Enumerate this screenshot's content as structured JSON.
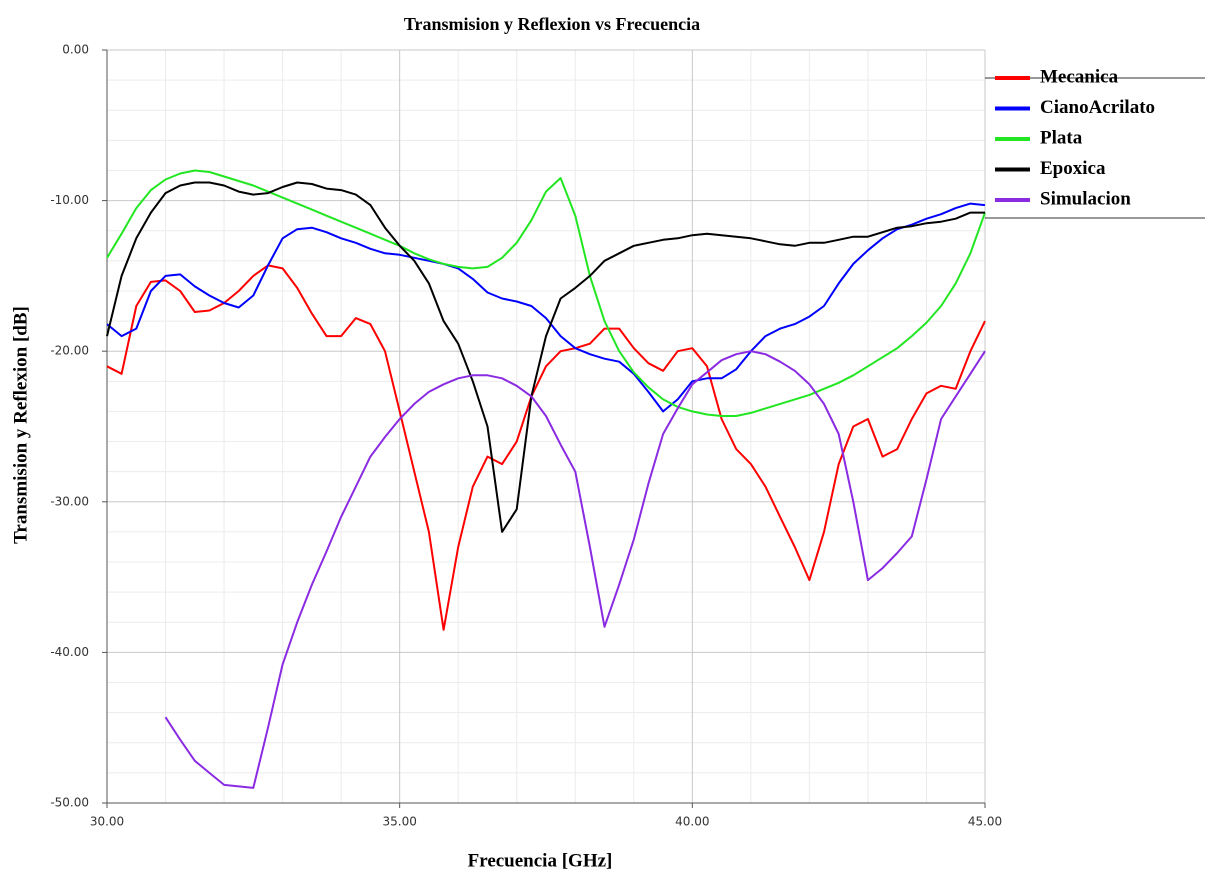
{
  "chart_data": {
    "type": "line",
    "title": "Transmision y Reflexion vs Frecuencia",
    "x_label": "Frecuencia [GHz]",
    "y_label": "Transmision y Reflexion [dB]",
    "xlim": [
      30,
      45
    ],
    "ylim": [
      -50,
      0
    ],
    "xticks": [
      {
        "value": 30,
        "label": "30.00"
      },
      {
        "value": 35,
        "label": "35.00"
      },
      {
        "value": 40,
        "label": "40.00"
      },
      {
        "value": 45,
        "label": "45.00"
      }
    ],
    "yticks": [
      {
        "value": 0,
        "label": "0.00"
      },
      {
        "value": -10,
        "label": "-10.00"
      },
      {
        "value": -20,
        "label": "-20.00"
      },
      {
        "value": -30,
        "label": "-30.00"
      },
      {
        "value": -40,
        "label": "-40.00"
      },
      {
        "value": -50,
        "label": "-50.00"
      }
    ],
    "xminorticks": [
      31,
      32,
      33,
      34,
      36,
      37,
      38,
      39,
      41,
      42,
      43,
      44
    ],
    "yminorticks": [
      -2,
      -4,
      -6,
      -8,
      -12,
      -14,
      -16,
      -18,
      -22,
      -24,
      -26,
      -28,
      -32,
      -34,
      -36,
      -38,
      -42,
      -44,
      -46,
      -48
    ],
    "grid": true,
    "legend": "right",
    "x": [
      30,
      30.25,
      30.5,
      30.75,
      31,
      31.25,
      31.5,
      31.75,
      32,
      32.25,
      32.5,
      32.75,
      33,
      33.25,
      33.5,
      33.75,
      34,
      34.25,
      34.5,
      34.75,
      35,
      35.25,
      35.5,
      35.75,
      36,
      36.25,
      36.5,
      36.75,
      37,
      37.25,
      37.5,
      37.75,
      38,
      38.25,
      38.5,
      38.75,
      39,
      39.25,
      39.5,
      39.75,
      40,
      40.25,
      40.5,
      40.75,
      41,
      41.25,
      41.5,
      41.75,
      42,
      42.25,
      42.5,
      42.75,
      43,
      43.25,
      43.5,
      43.75,
      44,
      44.25,
      44.5,
      44.75,
      45
    ],
    "series": [
      {
        "name": "Mecanica",
        "color": "#ff0000",
        "values": [
          -21,
          -21.5,
          -17,
          -15.4,
          -15.3,
          -16,
          -17.4,
          -17.3,
          -16.8,
          -16,
          -15,
          -14.3,
          -14.5,
          -15.8,
          -17.5,
          -19,
          -19,
          -17.8,
          -18.2,
          -20,
          -24,
          -28,
          -32,
          -38.5,
          -33,
          -29,
          -27,
          -27.5,
          -26,
          -23,
          -21,
          -20,
          -19.8,
          -19.5,
          -18.5,
          -18.5,
          -19.8,
          -20.8,
          -21.3,
          -20,
          -19.8,
          -21,
          -24.5,
          -26.5,
          -27.5,
          -29,
          -31,
          -33,
          -35.2,
          -32,
          -27.5,
          -25,
          -24.5,
          -27,
          -26.5,
          -24.5,
          -22.8,
          -22.3,
          -22.5,
          -20,
          -18
        ]
      },
      {
        "name": "CianoAcrilato",
        "color": "#0000ff",
        "values": [
          -18.2,
          -19,
          -18.5,
          -16,
          -15,
          -14.9,
          -15.7,
          -16.3,
          -16.8,
          -17.1,
          -16.3,
          -14.3,
          -12.5,
          -11.9,
          -11.8,
          -12.1,
          -12.5,
          -12.8,
          -13.2,
          -13.5,
          -13.6,
          -13.8,
          -14,
          -14.2,
          -14.5,
          -15.2,
          -16.1,
          -16.5,
          -16.7,
          -17,
          -17.8,
          -19,
          -19.8,
          -20.2,
          -20.5,
          -20.7,
          -21.5,
          -22.7,
          -24,
          -23.2,
          -22,
          -21.8,
          -21.8,
          -21.2,
          -20,
          -19,
          -18.5,
          -18.2,
          -17.7,
          -17,
          -15.5,
          -14.2,
          -13.3,
          -12.5,
          -11.9,
          -11.6,
          -11.2,
          -10.9,
          -10.5,
          -10.2,
          -10.3
        ]
      },
      {
        "name": "Plata",
        "color": "#22e622",
        "values": [
          -13.8,
          -12.2,
          -10.5,
          -9.3,
          -8.6,
          -8.2,
          -8,
          -8.1,
          -8.4,
          -8.7,
          -9,
          -9.4,
          -9.8,
          -10.2,
          -10.6,
          -11,
          -11.4,
          -11.8,
          -12.2,
          -12.6,
          -13,
          -13.5,
          -13.9,
          -14.2,
          -14.4,
          -14.5,
          -14.4,
          -13.8,
          -12.8,
          -11.3,
          -9.4,
          -8.5,
          -11,
          -15,
          -18,
          -20,
          -21.4,
          -22.4,
          -23.2,
          -23.7,
          -24,
          -24.2,
          -24.3,
          -24.3,
          -24.1,
          -23.8,
          -23.5,
          -23.2,
          -22.9,
          -22.5,
          -22.1,
          -21.6,
          -21,
          -20.4,
          -19.8,
          -19,
          -18.1,
          -17,
          -15.5,
          -13.5,
          -10.8
        ]
      },
      {
        "name": "Epoxica",
        "color": "#000000",
        "values": [
          -19,
          -15,
          -12.5,
          -10.8,
          -9.5,
          -9,
          -8.8,
          -8.8,
          -9,
          -9.4,
          -9.6,
          -9.5,
          -9.1,
          -8.8,
          -8.9,
          -9.2,
          -9.3,
          -9.6,
          -10.3,
          -11.8,
          -13,
          -14,
          -15.5,
          -18,
          -19.5,
          -22,
          -25,
          -32,
          -30.5,
          -23,
          -19,
          -16.5,
          -15.8,
          -15,
          -14,
          -13.5,
          -13,
          -12.8,
          -12.6,
          -12.5,
          -12.3,
          -12.2,
          -12.3,
          -12.4,
          -12.5,
          -12.7,
          -12.9,
          -13,
          -12.8,
          -12.8,
          -12.6,
          -12.4,
          -12.4,
          -12.1,
          -11.8,
          -11.7,
          -11.5,
          -11.4,
          -11.2,
          -10.8,
          -10.8
        ]
      },
      {
        "name": "Simulacion",
        "color": "#8a2be2",
        "values": [
          null,
          null,
          null,
          null,
          -44.3,
          -45.8,
          -47.2,
          -48,
          -48.8,
          -48.9,
          -49,
          -45,
          -40.8,
          -38,
          -35.5,
          -33.3,
          -31,
          -29,
          -27,
          -25.7,
          -24.5,
          -23.5,
          -22.7,
          -22.2,
          -21.8,
          -21.6,
          -21.6,
          -21.8,
          -22.3,
          -23,
          -24.3,
          -26.2,
          -28,
          -33,
          -38.3,
          -35.5,
          -32.5,
          -28.8,
          -25.5,
          -23.8,
          -22.2,
          -21.4,
          -20.6,
          -20.2,
          -20,
          -20.2,
          -20.7,
          -21.3,
          -22.2,
          -23.5,
          -25.5,
          -30,
          -35.2,
          -34.4,
          -33.4,
          -32.3,
          -28.5,
          -24.5,
          -23,
          -21.5,
          -20
        ]
      }
    ]
  }
}
